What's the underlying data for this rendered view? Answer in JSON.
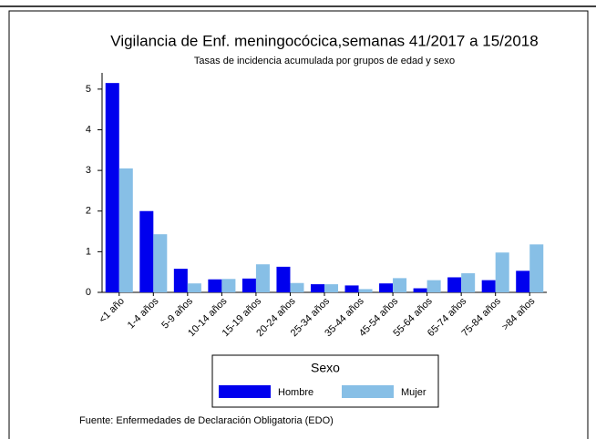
{
  "chart_data": {
    "type": "bar",
    "title": "Vigilancia de Enf. meningocócica,semanas 41/2017 a 15/2018",
    "subtitle": "Tasas de incidencia acumulada por grupos de edad y sexo",
    "categories": [
      "<1 año",
      "1-4 años",
      "5-9 años",
      "10-14 años",
      "15-19 años",
      "20-24 años",
      "25-34 años",
      "35-44 años",
      "45-54 años",
      "55-64 años",
      "65-74 años",
      "75-84 años",
      ">84 años"
    ],
    "series": [
      {
        "name": "Hombre",
        "color": "#0000ee",
        "values": [
          5.15,
          2.0,
          0.58,
          0.32,
          0.34,
          0.63,
          0.2,
          0.17,
          0.22,
          0.1,
          0.37,
          0.3,
          0.53
        ]
      },
      {
        "name": "Mujer",
        "color": "#87bfe6",
        "values": [
          3.05,
          1.43,
          0.22,
          0.33,
          0.69,
          0.23,
          0.2,
          0.08,
          0.35,
          0.3,
          0.47,
          0.98,
          1.18
        ]
      }
    ],
    "ylim": [
      0,
      5.4
    ],
    "yticks": [
      0,
      1,
      2,
      3,
      4,
      5
    ],
    "grid": false,
    "legend_title": "Sexo",
    "source": "Fuente: Enfermedades de Declaración Obligatoria (EDO)"
  }
}
